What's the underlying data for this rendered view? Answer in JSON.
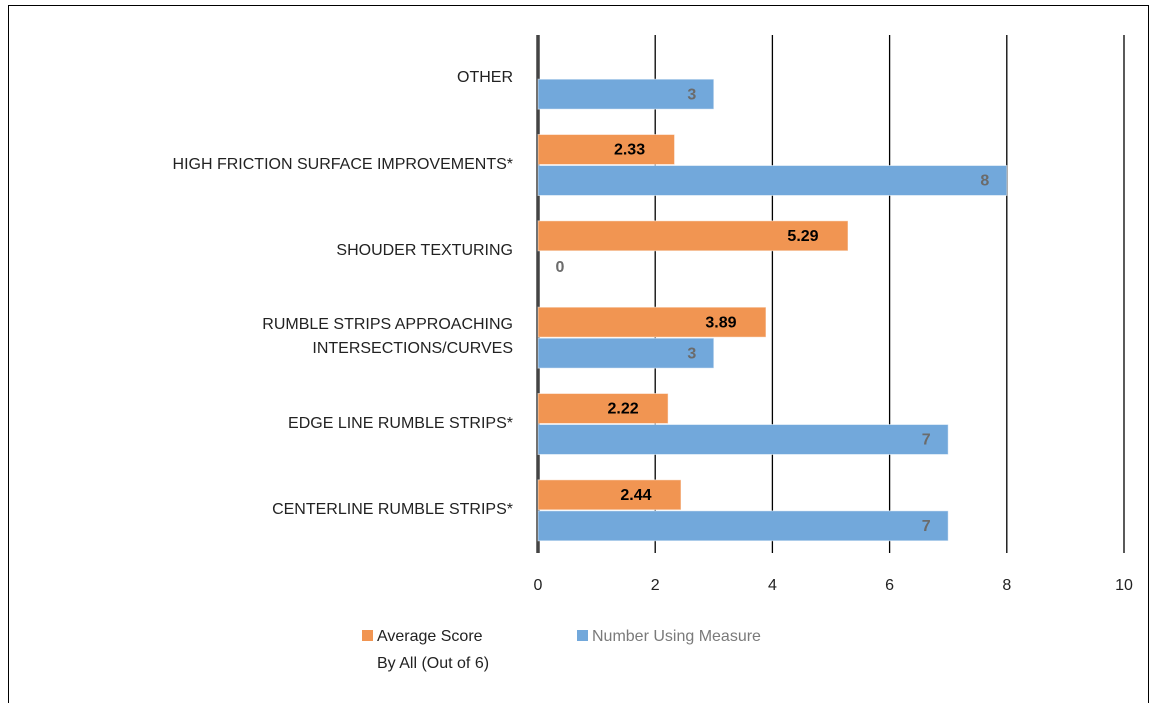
{
  "chart_data": {
    "type": "bar",
    "orientation": "horizontal",
    "categories": [
      "OTHER",
      "HIGH FRICTION SURFACE IMPROVEMENTS*",
      "SHOUDER TEXTURING",
      "RUMBLE STRIPS APPROACHING\nINTERSECTIONS/CURVES",
      "EDGE LINE RUMBLE STRIPS*",
      "CENTERLINE RUMBLE STRIPS*"
    ],
    "series": [
      {
        "name": "Average Score\nBy All (Out of 6)",
        "color": "#f19552",
        "label_color": "#000000",
        "values": [
          null,
          2.33,
          5.29,
          3.89,
          2.22,
          2.44
        ]
      },
      {
        "name": "Number Using Measure",
        "color": "#72a8db",
        "label_color": "#6b6b6b",
        "values": [
          3,
          8,
          0,
          3,
          7,
          7
        ]
      }
    ],
    "xlim": [
      0,
      10
    ],
    "xticks": [
      0,
      2,
      4,
      6,
      8,
      10
    ],
    "grid": true,
    "legend": "bottom"
  }
}
